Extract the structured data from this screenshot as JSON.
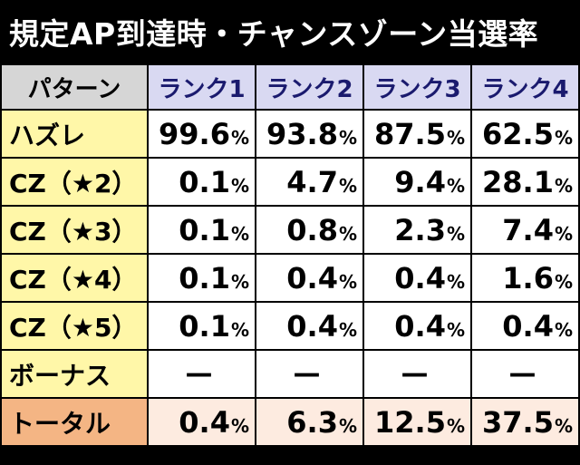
{
  "title": "規定AP到達時・チャンスゾーン当選率",
  "header": {
    "row_label": "パターン",
    "ranks": [
      "ランク1",
      "ランク2",
      "ランク3",
      "ランク4"
    ]
  },
  "rows": [
    {
      "label": "ハズレ",
      "values": [
        "99.6",
        "93.8",
        "87.5",
        "62.5"
      ]
    },
    {
      "label": "CZ（★2）",
      "values": [
        "0.1",
        "4.7",
        "9.4",
        "28.1"
      ]
    },
    {
      "label": "CZ（★3）",
      "values": [
        "0.1",
        "0.8",
        "2.3",
        "7.4"
      ]
    },
    {
      "label": "CZ（★4）",
      "values": [
        "0.1",
        "0.4",
        "0.4",
        "1.6"
      ]
    },
    {
      "label": "CZ（★5）",
      "values": [
        "0.1",
        "0.4",
        "0.4",
        "0.4"
      ]
    },
    {
      "label": "ボーナス",
      "values": [
        "—",
        "—",
        "—",
        "—"
      ]
    },
    {
      "label": "トータル",
      "values": [
        "0.4",
        "6.3",
        "12.5",
        "37.5"
      ]
    }
  ],
  "percent_sign": "%",
  "colors": {
    "title_bg": "#000000",
    "header_bg": "#d6d6d6",
    "rank_header_bg": "#d9d9f2",
    "rank_header_text": "#1a1a6e",
    "row_label_bg": "#fff7a8",
    "total_label_bg": "#f4b584",
    "total_value_bg": "#fdebe0"
  }
}
